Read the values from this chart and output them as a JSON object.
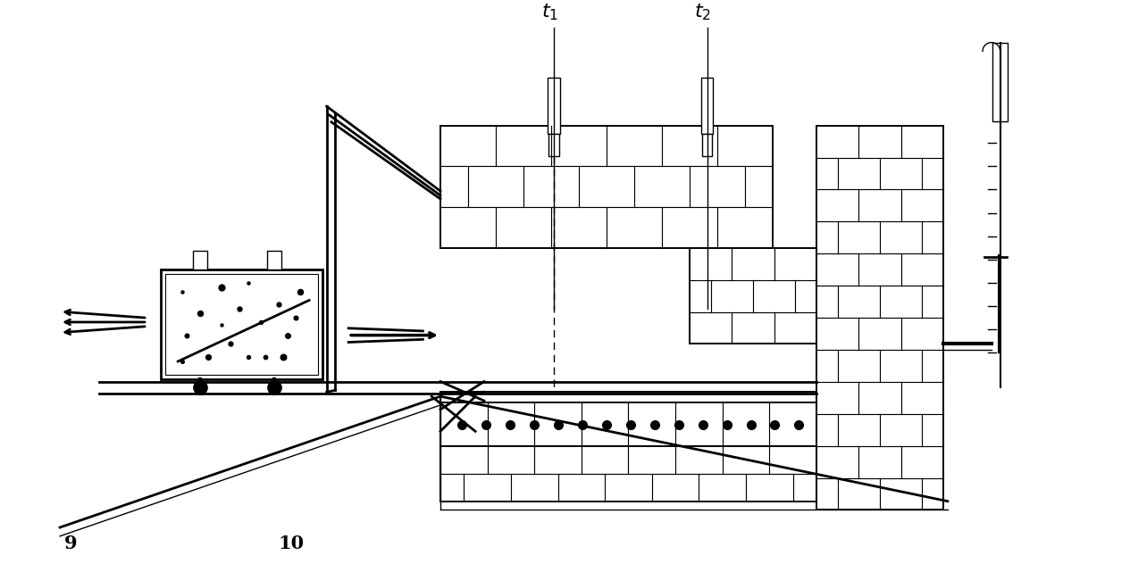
{
  "fig_width": 12.65,
  "fig_height": 6.41,
  "bg_color": "#ffffff",
  "line_color": "#000000",
  "label_9": "9",
  "label_10": "10"
}
